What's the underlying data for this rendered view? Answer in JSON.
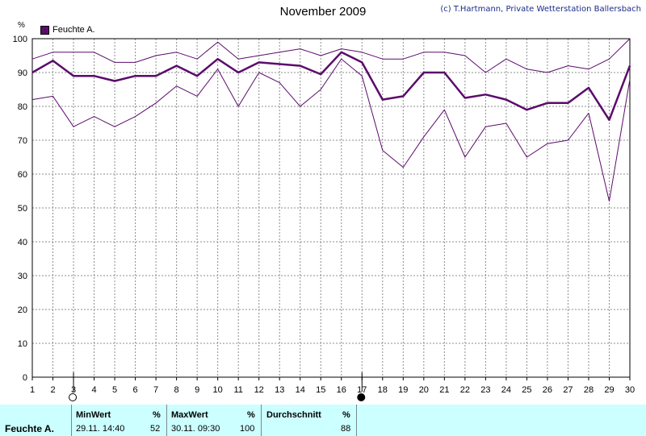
{
  "title": "November 2009",
  "credit": "(c) T.Hartmann, Private Wetterstation Ballersbach",
  "y_unit": "%",
  "colors": {
    "series": "#5b0b6b",
    "grid": "#8c8c8c",
    "footer_bg": "#ccffff"
  },
  "chart_data": {
    "type": "line",
    "x": [
      1,
      2,
      3,
      4,
      5,
      6,
      7,
      8,
      9,
      10,
      11,
      12,
      13,
      14,
      15,
      16,
      17,
      18,
      19,
      20,
      21,
      22,
      23,
      24,
      25,
      26,
      27,
      28,
      29,
      30
    ],
    "ylim": [
      0,
      100
    ],
    "yticks": [
      0,
      10,
      20,
      30,
      40,
      50,
      60,
      70,
      80,
      90,
      100
    ],
    "xticks": [
      1,
      2,
      3,
      4,
      5,
      6,
      7,
      8,
      9,
      10,
      11,
      12,
      13,
      14,
      15,
      16,
      17,
      18,
      19,
      20,
      21,
      22,
      23,
      24,
      25,
      26,
      27,
      28,
      29,
      30
    ],
    "grid": true,
    "legend": "Feuchte A.",
    "series": [
      {
        "name": "Feuchte A.",
        "role": "max",
        "values": [
          94,
          96,
          96,
          96,
          93,
          93,
          95,
          96,
          94,
          99,
          94,
          95,
          96,
          97,
          95,
          97,
          96,
          94,
          94,
          96,
          96,
          95,
          90,
          94,
          91,
          90,
          92,
          91,
          94,
          100
        ]
      },
      {
        "name": "Feuchte A.",
        "role": "mean",
        "values": [
          90,
          93.5,
          89,
          89,
          87.5,
          89,
          89,
          92,
          89,
          94,
          90,
          93,
          92.5,
          92,
          89.5,
          96,
          93,
          82,
          83,
          90,
          90,
          82.5,
          83.5,
          82,
          79,
          81,
          81,
          85.5,
          76,
          92
        ]
      },
      {
        "name": "Feuchte A.",
        "role": "min",
        "values": [
          82,
          83,
          74,
          77,
          74,
          77,
          81,
          86,
          83,
          91,
          80,
          90,
          87,
          80,
          85,
          94,
          89,
          67,
          62,
          71,
          79,
          65,
          74,
          75,
          65,
          69,
          70,
          78,
          52,
          88
        ]
      }
    ],
    "markers": [
      {
        "day": 3,
        "symbol": "open-circle"
      },
      {
        "day": 17,
        "symbol": "filled-circle"
      }
    ]
  },
  "footer": {
    "row_label": "Feuchte A.",
    "min": {
      "header": "MinWert",
      "unit": "%",
      "time": "29.11.  14:40",
      "value": "52"
    },
    "max": {
      "header": "MaxWert",
      "unit": "%",
      "time": "30.11.  09:30",
      "value": "100"
    },
    "avg": {
      "header": "Durchschnitt",
      "unit": "%",
      "value": "88"
    }
  }
}
